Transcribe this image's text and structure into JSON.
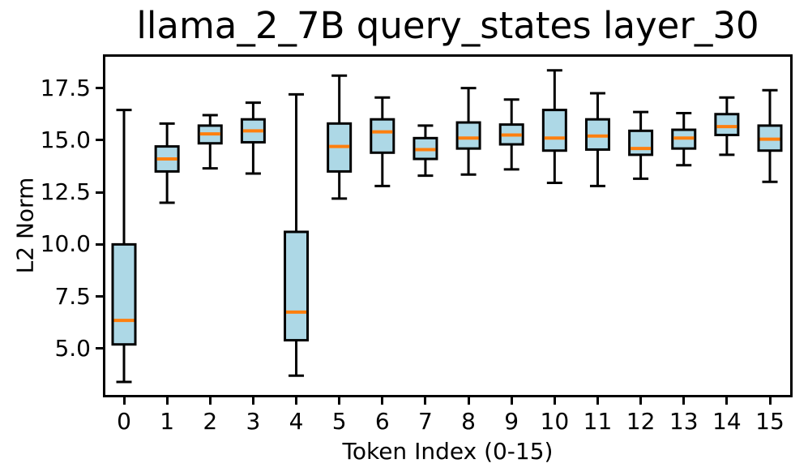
{
  "chart_data": {
    "type": "boxplot",
    "title": "llama_2_7B query_states layer_30",
    "xlabel": "Token Index (0-15)",
    "ylabel": "L2 Norm",
    "categories": [
      "0",
      "1",
      "2",
      "3",
      "4",
      "5",
      "6",
      "7",
      "8",
      "9",
      "10",
      "11",
      "12",
      "13",
      "14",
      "15"
    ],
    "ylim": [
      2.66,
      19.12
    ],
    "yticks": [
      5.0,
      7.5,
      10.0,
      12.5,
      15.0,
      17.5
    ],
    "ytick_labels": [
      "5.0",
      "7.5",
      "10.0",
      "12.5",
      "15.0",
      "17.5"
    ],
    "grid": false,
    "legend": null,
    "boxes": [
      {
        "token": "0",
        "whisker_low": 3.4,
        "q1": 5.2,
        "median": 6.35,
        "q3": 10.0,
        "whisker_high": 16.45
      },
      {
        "token": "1",
        "whisker_low": 12.0,
        "q1": 13.5,
        "median": 14.1,
        "q3": 14.7,
        "whisker_high": 15.8
      },
      {
        "token": "2",
        "whisker_low": 13.65,
        "q1": 14.85,
        "median": 15.3,
        "q3": 15.7,
        "whisker_high": 16.2
      },
      {
        "token": "3",
        "whisker_low": 13.4,
        "q1": 14.9,
        "median": 15.45,
        "q3": 16.0,
        "whisker_high": 16.8
      },
      {
        "token": "4",
        "whisker_low": 3.7,
        "q1": 5.4,
        "median": 6.75,
        "q3": 10.6,
        "whisker_high": 17.2
      },
      {
        "token": "5",
        "whisker_low": 12.2,
        "q1": 13.5,
        "median": 14.7,
        "q3": 15.8,
        "whisker_high": 18.1
      },
      {
        "token": "6",
        "whisker_low": 12.8,
        "q1": 14.4,
        "median": 15.4,
        "q3": 16.0,
        "whisker_high": 17.05
      },
      {
        "token": "7",
        "whisker_low": 13.3,
        "q1": 14.1,
        "median": 14.55,
        "q3": 15.1,
        "whisker_high": 15.7
      },
      {
        "token": "8",
        "whisker_low": 13.35,
        "q1": 14.6,
        "median": 15.1,
        "q3": 15.85,
        "whisker_high": 17.5
      },
      {
        "token": "9",
        "whisker_low": 13.6,
        "q1": 14.8,
        "median": 15.25,
        "q3": 15.75,
        "whisker_high": 16.95
      },
      {
        "token": "10",
        "whisker_low": 12.95,
        "q1": 14.5,
        "median": 15.1,
        "q3": 16.45,
        "whisker_high": 18.35
      },
      {
        "token": "11",
        "whisker_low": 12.8,
        "q1": 14.55,
        "median": 15.2,
        "q3": 16.0,
        "whisker_high": 17.25
      },
      {
        "token": "12",
        "whisker_low": 13.15,
        "q1": 14.3,
        "median": 14.6,
        "q3": 15.45,
        "whisker_high": 16.35
      },
      {
        "token": "13",
        "whisker_low": 13.8,
        "q1": 14.6,
        "median": 15.1,
        "q3": 15.5,
        "whisker_high": 16.3
      },
      {
        "token": "14",
        "whisker_low": 14.3,
        "q1": 15.25,
        "median": 15.65,
        "q3": 16.25,
        "whisker_high": 17.05
      },
      {
        "token": "15",
        "whisker_low": 13.0,
        "q1": 14.5,
        "median": 15.05,
        "q3": 15.7,
        "whisker_high": 17.4
      }
    ],
    "colors": {
      "box_fill": "#ADD8E6",
      "box_edge": "#000000",
      "median": "#FF7F0E",
      "whisker": "#000000",
      "axis": "#000000",
      "text": "#000000",
      "background": "#FFFFFF"
    }
  }
}
